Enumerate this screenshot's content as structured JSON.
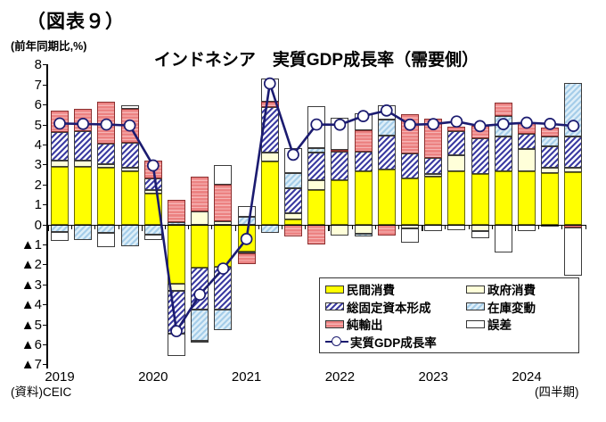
{
  "page": {
    "figure_label": "（図表９）",
    "unit_label": "(前年同期比,%)",
    "title": "インドネシア　実質GDP成長率（需要側）",
    "source": "(資料)CEIC",
    "frequency_note": "(四半期)"
  },
  "legend": {
    "items": [
      {
        "key": "cons",
        "label": "民間消費"
      },
      {
        "key": "gov",
        "label": "政府消費"
      },
      {
        "key": "gfcf",
        "label": "総固定資本形成"
      },
      {
        "key": "stock",
        "label": "在庫変動"
      },
      {
        "key": "netex",
        "label": "純輸出"
      },
      {
        "key": "error",
        "label": "誤差"
      },
      {
        "key": "gdp",
        "label": "実質GDP成長率"
      }
    ]
  },
  "chart_data": {
    "type": "bar",
    "subtype": "stacked-bar-with-line",
    "title": "インドネシア　実質GDP成長率（需要側）",
    "ylabel": "前年同期比, %",
    "ylim": [
      -7,
      8
    ],
    "grid": false,
    "legend_position": "bottom-right-inset",
    "ytick_labels": [
      "8",
      "7",
      "6",
      "5",
      "4",
      "3",
      "2",
      "1",
      "0",
      "▲1",
      "▲2",
      "▲3",
      "▲4",
      "▲5",
      "▲6",
      "▲7"
    ],
    "year_labels": [
      "2019",
      "2020",
      "2021",
      "2022",
      "2023",
      "2024"
    ],
    "year_start_indices": [
      0,
      4,
      8,
      12,
      16,
      20
    ],
    "categories": [
      "2019Q1",
      "2019Q2",
      "2019Q3",
      "2019Q4",
      "2020Q1",
      "2020Q2",
      "2020Q3",
      "2020Q4",
      "2021Q1",
      "2021Q2",
      "2021Q3",
      "2021Q4",
      "2022Q1",
      "2022Q2",
      "2022Q3",
      "2022Q4",
      "2023Q1",
      "2023Q2",
      "2023Q3",
      "2023Q4",
      "2024Q1",
      "2024Q2",
      "2024Q3"
    ],
    "bar_series": [
      {
        "name": "民間消費",
        "key": "cons",
        "style": "solid-yellow",
        "color": "#ffff00",
        "values": [
          2.9,
          2.9,
          2.85,
          2.7,
          1.55,
          -2.95,
          -2.15,
          -2.1,
          -1.35,
          3.15,
          0.25,
          1.75,
          2.25,
          2.7,
          2.75,
          2.3,
          2.4,
          2.7,
          2.55,
          2.7,
          2.7,
          2.6,
          2.65
        ]
      },
      {
        "name": "政府消費",
        "key": "gov",
        "style": "solid-cream",
        "color": "#ffffd9",
        "values": [
          0.3,
          0.3,
          0.2,
          0.15,
          0.2,
          -0.35,
          0.65,
          0.2,
          0,
          0.45,
          0.35,
          0.5,
          -0.55,
          -0.45,
          0,
          -0.2,
          0.15,
          0.8,
          -0.3,
          0,
          1.1,
          0.25,
          0.2
        ]
      },
      {
        "name": "総固定資本形成",
        "key": "gfcf",
        "style": "blue-diagonal-hatch",
        "color": "#3c3ca2",
        "values": [
          1.45,
          1.5,
          1.0,
          1.25,
          0.55,
          -2.15,
          -2.1,
          -2.15,
          -0.1,
          2.3,
          1.25,
          1.35,
          1.4,
          0.95,
          1.7,
          1.25,
          0.8,
          1.2,
          1.8,
          1.7,
          0.75,
          1.1,
          1.55
        ]
      },
      {
        "name": "在庫変動",
        "key": "stock",
        "style": "lightblue-diagonal-hatch",
        "color": "#a5cde9",
        "values": [
          -0.35,
          -0.75,
          -0.4,
          -1.05,
          -0.5,
          0.15,
          -1.55,
          -1.0,
          0.4,
          -0.4,
          0.75,
          0.25,
          0,
          -0.15,
          0.8,
          0,
          0,
          0,
          0,
          1.05,
          0,
          0.45,
          2.7
        ]
      },
      {
        "name": "純輸出",
        "key": "netex",
        "style": "red-horizontal-hatch",
        "color": "#ec8282",
        "values": [
          1.05,
          1.1,
          2.1,
          1.7,
          0.9,
          1.1,
          1.75,
          1.8,
          -0.5,
          0.25,
          -0.6,
          -1.0,
          0.1,
          1.1,
          -0.55,
          2.0,
          1.95,
          0.2,
          0.6,
          0.65,
          0.55,
          0.45,
          -0.15
        ]
      },
      {
        "name": "誤差",
        "key": "error",
        "style": "white",
        "color": "#ffffff",
        "values": [
          -0.45,
          0,
          -0.7,
          0.2,
          -0.25,
          -1.1,
          -0.1,
          1.0,
          0.55,
          1.15,
          1.25,
          2.1,
          1.6,
          0.85,
          0.75,
          -0.7,
          -0.3,
          -0.25,
          -0.35,
          -1.4,
          -0.3,
          -0.1,
          -2.4
        ]
      }
    ],
    "line_series": {
      "name": "実質GDP成長率",
      "key": "gdp",
      "color": "#1b1b70",
      "marker": "open-circle",
      "values": [
        5.07,
        5.05,
        5.02,
        4.97,
        2.97,
        -5.32,
        -3.49,
        -2.19,
        -0.71,
        7.07,
        3.51,
        5.02,
        5.01,
        5.44,
        5.72,
        5.01,
        5.04,
        5.17,
        4.94,
        5.04,
        5.11,
        5.05,
        4.95
      ]
    }
  }
}
